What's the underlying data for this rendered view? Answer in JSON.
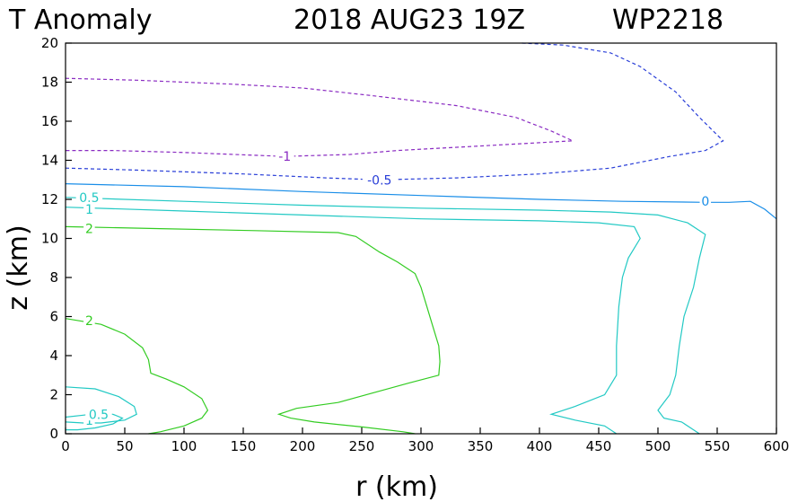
{
  "title": {
    "variable": "T Anomaly",
    "datetime": "2018 AUG23 19Z",
    "storm": "WP2218"
  },
  "chart_data": {
    "type": "contour",
    "title": "T Anomaly   2018 AUG23 19Z   WP2218",
    "xlabel": "r (km)",
    "ylabel": "z (km)",
    "xlim": [
      0,
      600
    ],
    "ylim": [
      0,
      20
    ],
    "xticks": [
      0,
      50,
      100,
      150,
      200,
      250,
      300,
      350,
      400,
      450,
      500,
      550,
      600
    ],
    "yticks": [
      0,
      2,
      4,
      6,
      8,
      10,
      12,
      14,
      16,
      18,
      20
    ],
    "colors": {
      "neg1": "#8a2bc2",
      "neg05": "#2a3fd8",
      "zero": "#1a8ee8",
      "pos05": "#22c9c4",
      "pos1": "#22c9c4",
      "pos2": "#33cc22"
    },
    "contours": [
      {
        "name": "contour-neg1",
        "level": -1,
        "label": "-1",
        "style": "dashed",
        "color_key": "neg1",
        "label_at": [
          185,
          14.2
        ],
        "points": [
          [
            0,
            18.2
          ],
          [
            60,
            18.1
          ],
          [
            140,
            17.9
          ],
          [
            200,
            17.7
          ],
          [
            260,
            17.3
          ],
          [
            330,
            16.8
          ],
          [
            380,
            16.2
          ],
          [
            410,
            15.5
          ],
          [
            428,
            15.0
          ],
          [
            400,
            14.9
          ],
          [
            340,
            14.7
          ],
          [
            280,
            14.5
          ],
          [
            240,
            14.3
          ],
          [
            185,
            14.2
          ],
          [
            100,
            14.4
          ],
          [
            40,
            14.5
          ],
          [
            0,
            14.5
          ]
        ]
      },
      {
        "name": "contour-neg05",
        "level": -0.5,
        "label": "-0.5",
        "style": "dashed",
        "color_key": "neg05",
        "label_at": [
          265,
          13.0
        ],
        "points": [
          [
            0,
            13.6
          ],
          [
            60,
            13.5
          ],
          [
            150,
            13.3
          ],
          [
            220,
            13.1
          ],
          [
            265,
            13.0
          ],
          [
            330,
            13.1
          ],
          [
            400,
            13.3
          ],
          [
            460,
            13.6
          ],
          [
            510,
            14.2
          ],
          [
            540,
            14.5
          ],
          [
            555,
            15.0
          ],
          [
            535,
            16.2
          ],
          [
            515,
            17.5
          ],
          [
            485,
            18.8
          ],
          [
            460,
            19.5
          ],
          [
            420,
            19.9
          ],
          [
            385,
            20.0
          ]
        ]
      },
      {
        "name": "contour-zero",
        "level": 0,
        "label": "0",
        "style": "solid",
        "color_key": "zero",
        "label_at": [
          540,
          11.9
        ],
        "points": [
          [
            0,
            12.8
          ],
          [
            100,
            12.65
          ],
          [
            200,
            12.4
          ],
          [
            300,
            12.2
          ],
          [
            400,
            12.0
          ],
          [
            470,
            11.9
          ],
          [
            540,
            11.85
          ],
          [
            560,
            11.85
          ],
          [
            578,
            11.9
          ],
          [
            590,
            11.5
          ],
          [
            600,
            11.0
          ]
        ]
      },
      {
        "name": "contour-pos05",
        "level": 0.5,
        "label": "0.5",
        "style": "solid",
        "color_key": "pos05",
        "label_at": [
          20,
          12.1
        ],
        "points": [
          [
            0,
            12.1
          ],
          [
            100,
            11.9
          ],
          [
            200,
            11.7
          ],
          [
            300,
            11.55
          ],
          [
            400,
            11.45
          ],
          [
            460,
            11.35
          ],
          [
            500,
            11.2
          ],
          [
            525,
            10.8
          ],
          [
            540,
            10.2
          ],
          [
            535,
            9.0
          ],
          [
            530,
            7.5
          ],
          [
            522,
            6.0
          ],
          [
            518,
            4.5
          ],
          [
            515,
            3.0
          ],
          [
            510,
            2.0
          ],
          [
            500,
            1.2
          ],
          [
            505,
            0.8
          ],
          [
            520,
            0.6
          ],
          [
            530,
            0.2
          ],
          [
            535,
            0.0
          ]
        ]
      },
      {
        "name": "contour-pos1",
        "level": 1,
        "label": "1",
        "style": "solid",
        "color_key": "pos1",
        "label_at": [
          20,
          11.5
        ],
        "points": [
          [
            0,
            11.6
          ],
          [
            100,
            11.4
          ],
          [
            200,
            11.2
          ],
          [
            300,
            11.0
          ],
          [
            400,
            10.9
          ],
          [
            450,
            10.8
          ],
          [
            480,
            10.6
          ],
          [
            485,
            10.0
          ],
          [
            475,
            9.0
          ],
          [
            470,
            8.0
          ],
          [
            467,
            6.5
          ],
          [
            465,
            4.5
          ],
          [
            465,
            3.0
          ],
          [
            455,
            2.0
          ],
          [
            430,
            1.4
          ],
          [
            410,
            1.0
          ],
          [
            430,
            0.7
          ],
          [
            455,
            0.4
          ],
          [
            465,
            0.0
          ]
        ]
      },
      {
        "name": "contour-pos2-upper",
        "level": 2,
        "label": "2",
        "style": "solid",
        "color_key": "pos2",
        "label_at": [
          20,
          10.5
        ],
        "points": [
          [
            0,
            10.6
          ],
          [
            80,
            10.5
          ],
          [
            160,
            10.4
          ],
          [
            230,
            10.3
          ],
          [
            245,
            10.1
          ],
          [
            265,
            9.3
          ],
          [
            280,
            8.8
          ],
          [
            295,
            8.2
          ],
          [
            300,
            7.5
          ],
          [
            305,
            6.5
          ],
          [
            310,
            5.5
          ],
          [
            315,
            4.5
          ],
          [
            316,
            3.7
          ],
          [
            315,
            3.0
          ],
          [
            290,
            2.6
          ],
          [
            260,
            2.1
          ],
          [
            230,
            1.6
          ],
          [
            195,
            1.3
          ],
          [
            180,
            1.0
          ],
          [
            190,
            0.8
          ],
          [
            210,
            0.6
          ],
          [
            250,
            0.35
          ],
          [
            285,
            0.1
          ],
          [
            295,
            0.0
          ]
        ]
      },
      {
        "name": "contour-pos2-lower",
        "level": 2,
        "label": "2",
        "style": "solid",
        "color_key": "pos2",
        "label_at": [
          20,
          5.8
        ],
        "points": [
          [
            0,
            5.9
          ],
          [
            30,
            5.6
          ],
          [
            50,
            5.1
          ],
          [
            65,
            4.4
          ],
          [
            70,
            3.8
          ],
          [
            72,
            3.1
          ],
          [
            85,
            2.8
          ],
          [
            100,
            2.4
          ],
          [
            115,
            1.8
          ],
          [
            120,
            1.2
          ],
          [
            115,
            0.8
          ],
          [
            100,
            0.4
          ],
          [
            80,
            0.1
          ],
          [
            70,
            0.0
          ]
        ]
      },
      {
        "name": "contour-pos1-inner",
        "level": 1,
        "label": "1",
        "style": "solid",
        "color_key": "pos1",
        "label_at": [
          20,
          0.7
        ],
        "points": [
          [
            0,
            2.4
          ],
          [
            25,
            2.3
          ],
          [
            45,
            1.9
          ],
          [
            58,
            1.4
          ],
          [
            60,
            1.0
          ],
          [
            50,
            0.7
          ],
          [
            30,
            0.55
          ],
          [
            15,
            0.55
          ],
          [
            0,
            0.6
          ]
        ]
      },
      {
        "name": "contour-pos05-inner",
        "level": 0.5,
        "label": "0.5",
        "style": "solid",
        "color_key": "pos05",
        "label_at": [
          28,
          1.0
        ],
        "points": [
          [
            0,
            0.85
          ],
          [
            15,
            0.95
          ],
          [
            28,
            1.05
          ],
          [
            40,
            1.0
          ],
          [
            48,
            0.8
          ],
          [
            40,
            0.5
          ],
          [
            25,
            0.3
          ],
          [
            10,
            0.2
          ],
          [
            0,
            0.2
          ]
        ]
      }
    ]
  }
}
